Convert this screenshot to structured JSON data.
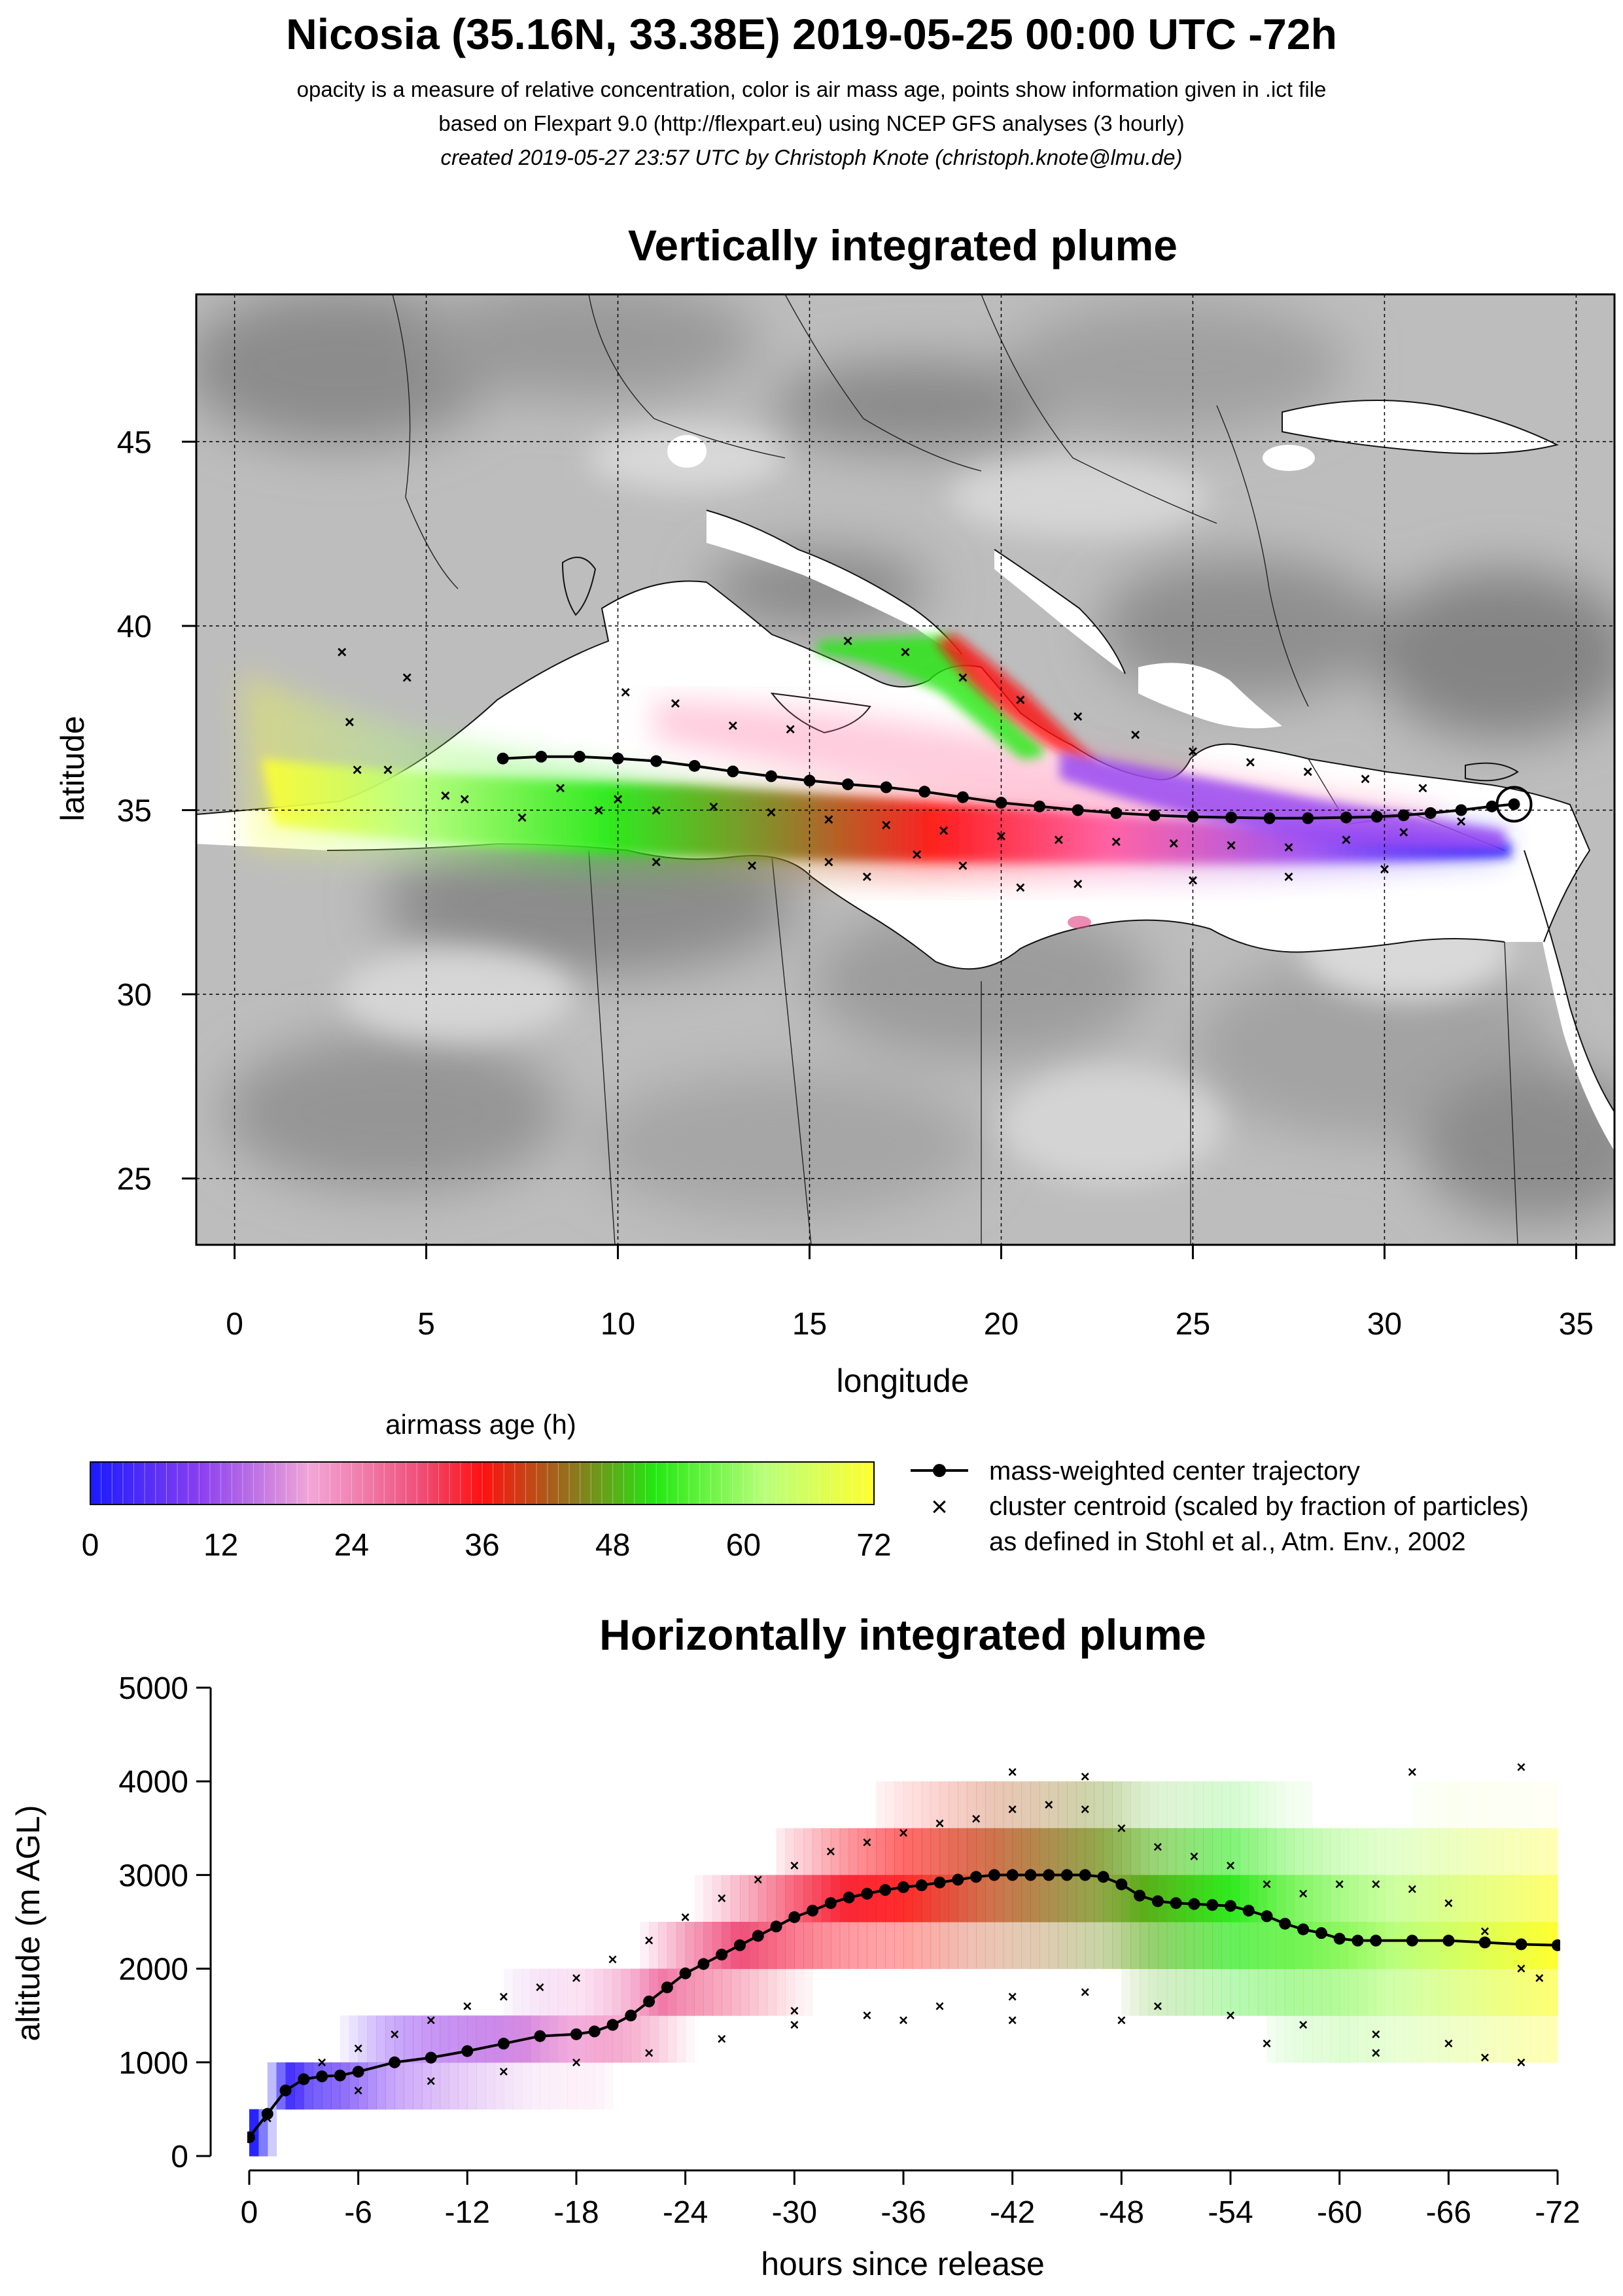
{
  "header": {
    "title": "Nicosia (35.16N, 33.38E) 2019-05-25 00:00 UTC -72h",
    "line1": "opacity is a measure of relative concentration, color is air mass age, points show information given in .ict file",
    "line2": "based on Flexpart 9.0 (http://flexpart.eu) using NCEP GFS analyses (3 hourly)",
    "line3": "created 2019-05-27 23:57 UTC by Christoph Knote (christoph.knote@lmu.de)"
  },
  "colors": {
    "age_ramp": [
      "#1a1aff",
      "#9a4cf2",
      "#f2a6d8",
      "#ef4f7a",
      "#ff1010",
      "#8a7a1e",
      "#22e810",
      "#b8ff7a",
      "#ffff30"
    ],
    "terrain_dark": "#7a7a7a",
    "terrain_light": "#c9c9c9",
    "sea": "#ffffff"
  },
  "chart_data": [
    {
      "type": "map",
      "title": "Vertically integrated plume",
      "xlabel": "longitude",
      "ylabel": "latitude",
      "xlim": [
        -1,
        36
      ],
      "ylim": [
        23.2,
        49
      ],
      "xticks": [
        "0",
        "5",
        "10",
        "15",
        "20",
        "25",
        "30",
        "35"
      ],
      "yticks": [
        "45",
        "40",
        "35",
        "30",
        "25"
      ],
      "grid": true,
      "release_point": {
        "lon": 33.38,
        "lat": 35.16
      },
      "center_trajectory": {
        "lon": [
          33.38,
          32.8,
          32.0,
          31.2,
          30.5,
          29.8,
          29.0,
          28.0,
          27.0,
          26.0,
          25.0,
          24.0,
          23.0,
          22.0,
          21.0,
          20.0,
          19.0,
          18.0,
          17.0,
          16.0,
          15.0,
          14.0,
          13.0,
          12.0,
          11.0,
          10.0,
          9.0,
          8.0,
          7.0
        ],
        "lat": [
          35.16,
          35.1,
          35.0,
          34.92,
          34.86,
          34.82,
          34.8,
          34.78,
          34.78,
          34.8,
          34.82,
          34.86,
          34.92,
          35.0,
          35.1,
          35.2,
          35.35,
          35.5,
          35.62,
          35.7,
          35.8,
          35.92,
          36.05,
          36.2,
          36.33,
          36.4,
          36.45,
          36.45,
          36.4
        ]
      },
      "cluster_centroids": {
        "lon": [
          32.0,
          30.5,
          29.0,
          27.5,
          26.0,
          24.5,
          23.0,
          21.5,
          20.0,
          18.5,
          17.0,
          15.5,
          14.0,
          12.5,
          11.0,
          10.0,
          8.5,
          6.0,
          4.0,
          3.0,
          2.8,
          4.5,
          31.0,
          29.5,
          28.0,
          26.5,
          25.0,
          23.5,
          22.0,
          20.5,
          19.0,
          17.5,
          16.0,
          14.5,
          13.0,
          11.5,
          10.2,
          30.0,
          27.5,
          25.0,
          22.0,
          20.5,
          19.0,
          17.8,
          16.5,
          15.5,
          13.5,
          11.0,
          9.5,
          7.5,
          5.5,
          3.2
        ],
        "lat": [
          34.7,
          34.4,
          34.2,
          34.0,
          34.05,
          34.1,
          34.15,
          34.2,
          34.3,
          34.45,
          34.6,
          34.75,
          34.95,
          35.1,
          35.0,
          35.3,
          35.6,
          35.3,
          36.1,
          37.4,
          39.3,
          38.6,
          35.6,
          35.85,
          36.05,
          36.3,
          36.6,
          37.05,
          37.55,
          38.0,
          38.6,
          39.3,
          39.6,
          37.2,
          37.3,
          37.9,
          38.2,
          33.4,
          33.2,
          33.1,
          33.0,
          32.9,
          33.5,
          33.8,
          33.2,
          33.6,
          33.5,
          33.6,
          35.0,
          34.8,
          35.4,
          36.1
        ]
      }
    },
    {
      "type": "heatmap",
      "title": "Horizontally integrated plume",
      "xlabel": "hours since release",
      "ylabel": "altitude (m AGL)",
      "xlim": [
        0,
        -72
      ],
      "ylim": [
        0,
        5000
      ],
      "xticks": [
        "0",
        "-6",
        "-12",
        "-18",
        "-24",
        "-30",
        "-36",
        "-42",
        "-48",
        "-54",
        "-60",
        "-66",
        "-72"
      ],
      "yticks": [
        "0",
        "1000",
        "2000",
        "3000",
        "4000",
        "5000"
      ],
      "grid": false,
      "center_trajectory": {
        "hours": [
          0,
          -1,
          -2,
          -3,
          -4,
          -5,
          -6,
          -8,
          -10,
          -12,
          -14,
          -16,
          -18,
          -19,
          -20,
          -21,
          -22,
          -23,
          -24,
          -25,
          -26,
          -27,
          -28,
          -29,
          -30,
          -31,
          -32,
          -33,
          -34,
          -35,
          -36,
          -37,
          -38,
          -39,
          -40,
          -41,
          -42,
          -43,
          -44,
          -45,
          -46,
          -47,
          -48,
          -49,
          -50,
          -51,
          -52,
          -53,
          -54,
          -55,
          -56,
          -57,
          -58,
          -59,
          -60,
          -61,
          -62,
          -64,
          -66,
          -68,
          -70,
          -72
        ],
        "altitude": [
          200,
          450,
          700,
          820,
          850,
          860,
          900,
          1000,
          1050,
          1120,
          1200,
          1280,
          1300,
          1330,
          1400,
          1500,
          1650,
          1800,
          1950,
          2050,
          2150,
          2250,
          2350,
          2450,
          2550,
          2620,
          2700,
          2760,
          2800,
          2840,
          2870,
          2890,
          2920,
          2950,
          2980,
          3000,
          3000,
          3000,
          3000,
          3000,
          3000,
          2980,
          2900,
          2780,
          2720,
          2700,
          2690,
          2680,
          2670,
          2620,
          2560,
          2480,
          2420,
          2380,
          2320,
          2300,
          2300,
          2300,
          2300,
          2280,
          2260,
          2250
        ]
      },
      "cluster_centroids": {
        "hours": [
          -1,
          -2,
          -4,
          -6,
          -8,
          -10,
          -12,
          -14,
          -16,
          -18,
          -20,
          -22,
          -24,
          -26,
          -28,
          -30,
          -32,
          -34,
          -36,
          -38,
          -40,
          -42,
          -44,
          -46,
          -48,
          -50,
          -52,
          -54,
          -56,
          -58,
          -60,
          -62,
          -64,
          -66,
          -68,
          -70,
          -71,
          -6,
          -10,
          -14,
          -18,
          -22,
          -26,
          -30,
          -34,
          -38,
          -42,
          -46,
          -50,
          -54,
          -58,
          -62,
          -66,
          -70,
          -30,
          -36,
          -42,
          -48,
          -56,
          -62,
          -68,
          -42,
          -46,
          -64,
          -70
        ],
        "altitude": [
          400,
          700,
          1000,
          1150,
          1300,
          1450,
          1600,
          1700,
          1800,
          1900,
          2100,
          2300,
          2550,
          2750,
          2950,
          3100,
          3250,
          3350,
          3450,
          3550,
          3600,
          3700,
          3750,
          3700,
          3500,
          3300,
          3200,
          3100,
          2900,
          2800,
          2900,
          2900,
          2850,
          2700,
          2400,
          2000,
          1900,
          700,
          800,
          900,
          1000,
          1100,
          1250,
          1400,
          1500,
          1600,
          1700,
          1750,
          1600,
          1500,
          1400,
          1300,
          1200,
          1000,
          1550,
          1450,
          1450,
          1450,
          1200,
          1100,
          1050,
          4100,
          4050,
          4100,
          4150
        ]
      }
    },
    {
      "type": "colorbar",
      "title": "airmass age (h)",
      "ticks": [
        "0",
        "12",
        "24",
        "36",
        "48",
        "60",
        "72"
      ]
    }
  ],
  "legend": {
    "line_label": "mass-weighted center trajectory",
    "cross_label": "cluster centroid (scaled by fraction of particles)",
    "cross_label2": "as defined in Stohl et al., Atm. Env., 2002"
  }
}
